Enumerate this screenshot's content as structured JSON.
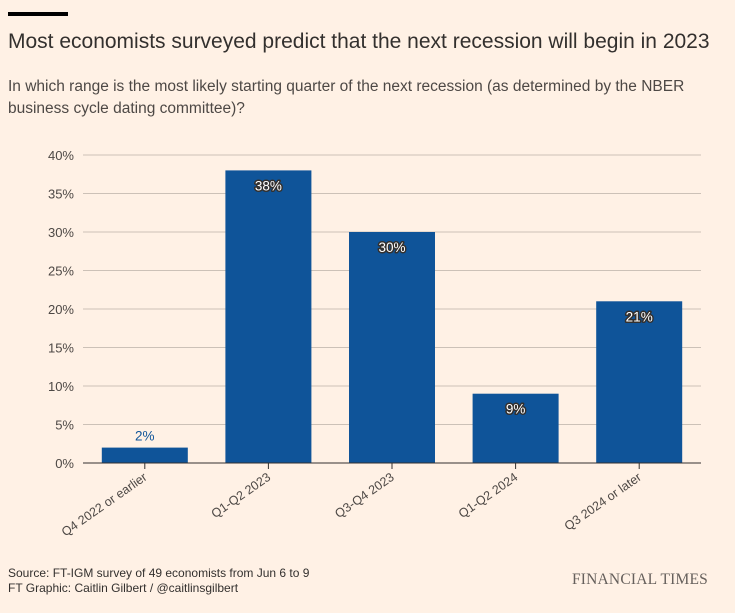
{
  "header": {
    "title": "Most economists surveyed predict that the next recession will begin in 2023",
    "subtitle": "In which range is the most likely starting quarter of the next recession (as determined by the NBER business cycle dating committee)?"
  },
  "chart_data": {
    "type": "bar",
    "title": "Most economists surveyed predict that the next recession will begin in 2023",
    "subtitle": "In which range is the most likely starting quarter of the next recession (as determined by the NBER business cycle dating committee)?",
    "categories": [
      "Q4 2022 or earlier",
      "Q1-Q2 2023",
      "Q3-Q4 2023",
      "Q1-Q2 2024",
      "Q3 2024 or later"
    ],
    "values": [
      2,
      38,
      30,
      9,
      21
    ],
    "value_labels": [
      "2%",
      "38%",
      "30%",
      "9%",
      "21%"
    ],
    "y_ticks": [
      0,
      5,
      10,
      15,
      20,
      25,
      30,
      35,
      40
    ],
    "y_tick_labels": [
      "0%",
      "5%",
      "10%",
      "15%",
      "20%",
      "25%",
      "30%",
      "35%",
      "40%"
    ],
    "ylim": [
      0,
      40
    ],
    "xlabel": "",
    "ylabel": "",
    "grid": true,
    "bar_color": "#0f5499",
    "label_inside_color": "#ffffff",
    "label_outside_color": "#0f5499"
  },
  "footer": {
    "source": "Source: FT-IGM survey of 49 economists from Jun 6 to 9",
    "credit": "FT Graphic: Caitlin Gilbert / @caitlinsgilbert",
    "brand": "FINANCIAL TIMES"
  },
  "colors": {
    "background": "#fff1e5",
    "text": "#33302e",
    "grid": "#ccc1b7",
    "axis": "#33302e"
  }
}
